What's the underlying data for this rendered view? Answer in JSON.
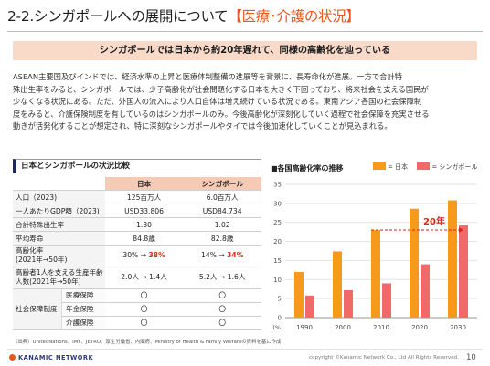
{
  "header": {
    "title_main": "2-2.シンガポールへの展開について",
    "title_accent": "【医療･介護の状況】"
  },
  "banner": "シンガポールでは日本から約20年遅れて、同様の高齢化を辿っている",
  "body": [
    "ASEAN主要国及びインドでは、経済水準の上昇と医療体制整備の進展等を背景に、長寿命化が進展。一方で合計特",
    "殊出生率をみると、シンガポールでは、少子高齢化が社会問題化する日本を大きく下回っており、将来社会を支える国民が",
    "少なくなる状況にある。ただ、外国人の流入により人口自体は増え続けている状況である。東南アジア各国の社会保障制",
    "度をみると、介護保険制度を有しているのはシンガポールのみ。今後高齢化が深刻化していく過程で社会保障を充実させる",
    "動きが活発化することが想定され、特に深刻なシンガポールやタイでは今後加速化していくことが見込まれる。"
  ],
  "table": {
    "heading": "日本とシンガポールの状況比較",
    "col_japan": "日本",
    "col_singapore": "シンガポール",
    "rows": {
      "population": {
        "label": "人口（2023)",
        "japan": "125百万人",
        "singapore": "6.0百万人"
      },
      "gdp": {
        "label": "一人あたりGDP額（2023)",
        "japan": "USD33,806",
        "singapore": "USD84,734"
      },
      "fertility": {
        "label": "合計特殊出生率",
        "japan": "1.30",
        "singapore": "1.02"
      },
      "life": {
        "label": "平均寿命",
        "japan": "84.8歳",
        "singapore": "82.8歳"
      },
      "aging": {
        "label_1": "高齢化率",
        "label_2": "(2021年→50年)",
        "japan_from": "30%",
        "japan_to": "38%",
        "singapore_from": "14%",
        "singapore_to": "34%",
        "arrow": "→"
      },
      "support": {
        "label_1": "高齢者1人を支える生産年齢",
        "label_2": "人数(2021年→50年)",
        "japan_from": "2.0人",
        "japan_to": "1.4人",
        "singapore_from": "5.2人",
        "singapore_to": "1.6人",
        "arrow": "→"
      },
      "welfare": {
        "label": "社会保障制度",
        "items": [
          {
            "name": "医療保険",
            "japan": "〇",
            "singapore": "〇"
          },
          {
            "name": "年金保険",
            "japan": "〇",
            "singapore": "〇"
          },
          {
            "name": "介護保険",
            "japan": "〇",
            "singapore": "〇"
          }
        ]
      }
    }
  },
  "chart_data": {
    "type": "bar",
    "title": "■各国高齢化率の推移",
    "categories": [
      "1990",
      "2000",
      "2010",
      "2020",
      "2030"
    ],
    "series": [
      {
        "name": "日本",
        "color": "#f59a1b",
        "values": [
          12,
          17.4,
          23,
          28.6,
          30.8
        ]
      },
      {
        "name": "シンガポール",
        "color": "#f06a6a",
        "values": [
          5.8,
          7.2,
          9,
          14,
          24.2
        ]
      }
    ],
    "yticks": [
      "0",
      "5",
      "10",
      "15",
      "20",
      "25",
      "30",
      "35"
    ],
    "ylim": [
      0,
      35
    ],
    "y_unit": "(%)",
    "grid": true,
    "legend_position": "top-right",
    "annotation": {
      "text": "20年",
      "color": "#d9261c"
    }
  },
  "footer": {
    "source": "（出典）UnitedNations、IMF、JETRO、厚生労働省、内閣府、Ministry of Health & Family Welfareの資料を基に作成",
    "logo": "KANAMIC NETWORK",
    "copyright": "copyright ©Kanamic Network Co., Ltd All Rights Reserved.",
    "page_number": "10"
  }
}
